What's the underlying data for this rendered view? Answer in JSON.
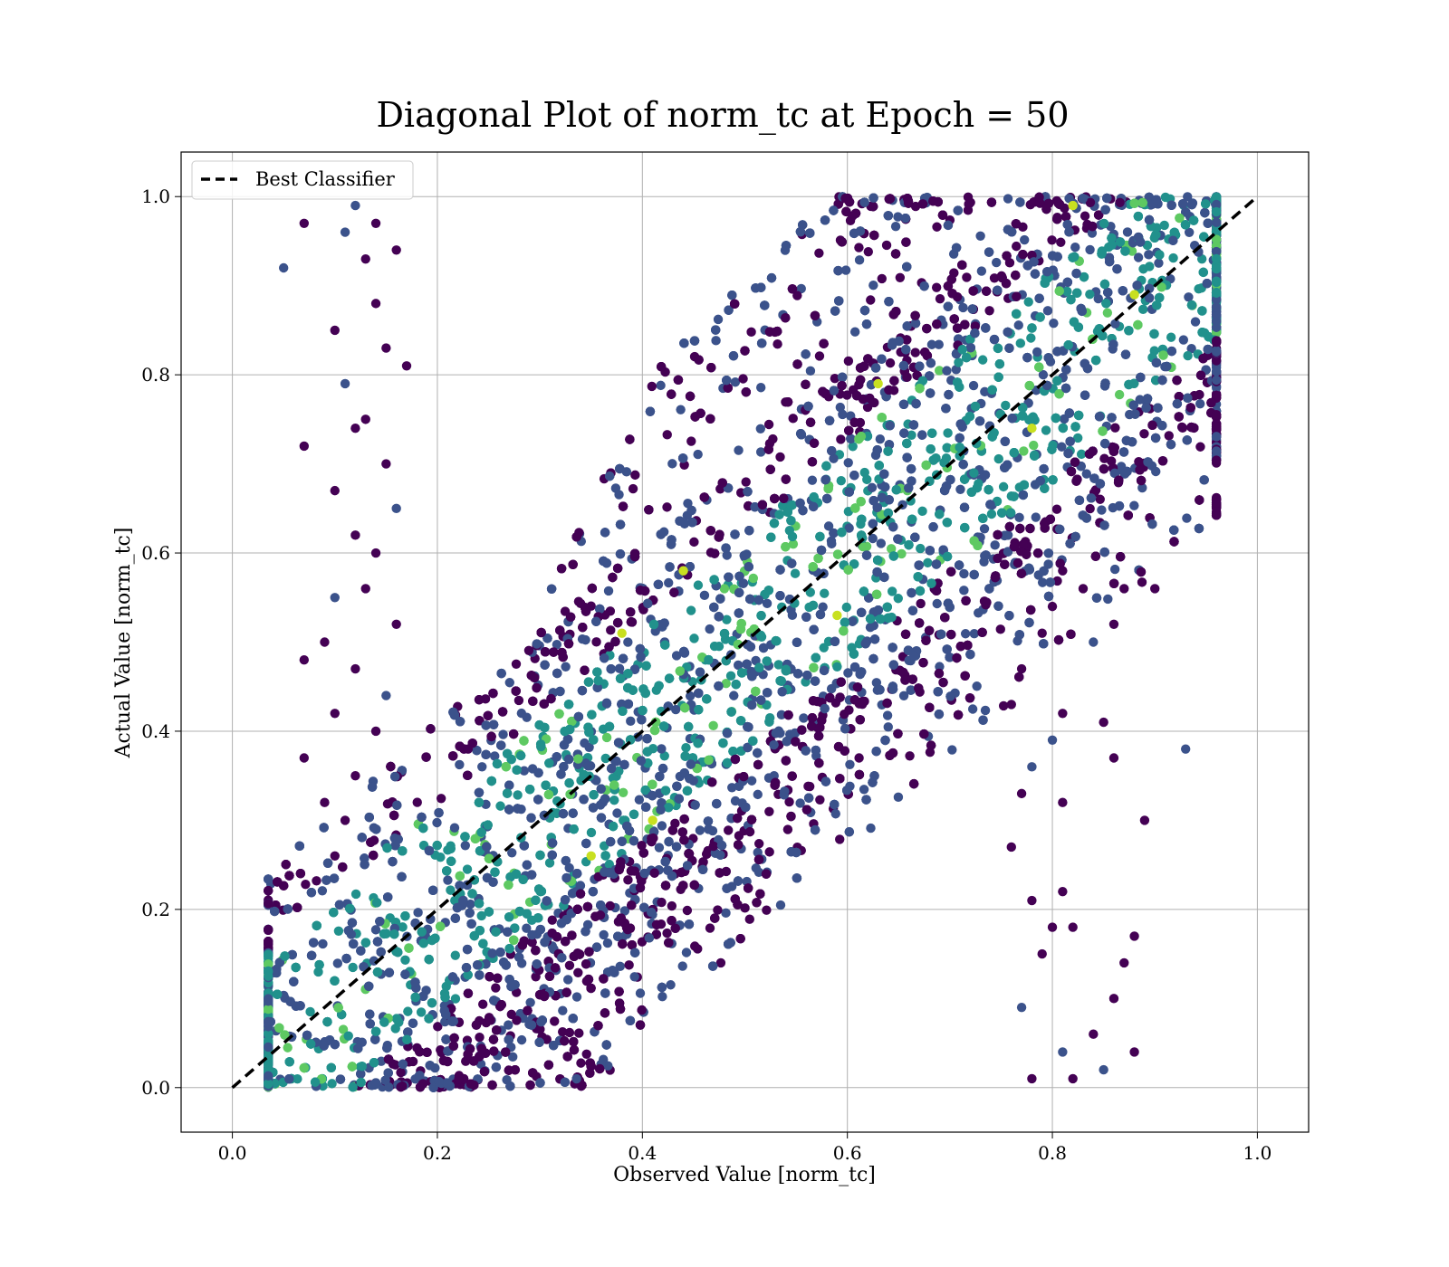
{
  "chart_data": {
    "type": "scatter",
    "title": "Diagonal Plot of norm_tc at Epoch = 50",
    "xlabel": "Observed Value [norm_tc]",
    "ylabel": "Actual Value [norm_tc]",
    "xlim": [
      -0.05,
      1.05
    ],
    "ylim": [
      -0.05,
      1.05
    ],
    "xticks": [
      "0.0",
      "0.2",
      "0.4",
      "0.6",
      "0.8",
      "1.0"
    ],
    "yticks": [
      "0.0",
      "0.2",
      "0.4",
      "0.6",
      "0.8",
      "1.0"
    ],
    "grid": true,
    "legend": {
      "placement": "upper-left",
      "entries": [
        "Best Classifier"
      ]
    },
    "colormap": "viridis",
    "point_color_range": [
      "#440154",
      "#3b528b",
      "#21918c",
      "#5ec962",
      "#c8e020"
    ],
    "reference_line": {
      "name": "Best Classifier",
      "style": "dashed",
      "color": "#000000",
      "x": [
        0.0,
        1.0
      ],
      "y": [
        0.0,
        1.0
      ]
    },
    "series": [
      {
        "name": "",
        "points": [
          [
            0.05,
            0.92
          ],
          [
            0.07,
            0.97
          ],
          [
            0.07,
            0.72
          ],
          [
            0.1,
            0.85
          ],
          [
            0.1,
            0.67
          ],
          [
            0.11,
            0.79
          ],
          [
            0.12,
            0.74
          ],
          [
            0.12,
            0.62
          ],
          [
            0.07,
            0.48
          ],
          [
            0.09,
            0.5
          ],
          [
            0.1,
            0.55
          ],
          [
            0.1,
            0.42
          ],
          [
            0.07,
            0.37
          ],
          [
            0.09,
            0.32
          ],
          [
            0.1,
            0.26
          ],
          [
            0.11,
            0.96
          ],
          [
            0.13,
            0.93
          ],
          [
            0.14,
            0.88
          ],
          [
            0.15,
            0.83
          ],
          [
            0.16,
            0.94
          ],
          [
            0.12,
            0.99
          ],
          [
            0.14,
            0.97
          ],
          [
            0.17,
            0.81
          ],
          [
            0.13,
            0.75
          ],
          [
            0.15,
            0.7
          ],
          [
            0.16,
            0.65
          ],
          [
            0.14,
            0.6
          ],
          [
            0.13,
            0.56
          ],
          [
            0.16,
            0.52
          ],
          [
            0.12,
            0.47
          ],
          [
            0.15,
            0.44
          ],
          [
            0.14,
            0.4
          ],
          [
            0.12,
            0.35
          ],
          [
            0.11,
            0.3
          ],
          [
            0.9,
            0.56
          ],
          [
            0.93,
            0.38
          ],
          [
            0.89,
            0.3
          ],
          [
            0.88,
            0.17
          ],
          [
            0.88,
            0.04
          ],
          [
            0.86,
            0.1
          ],
          [
            0.85,
            0.02
          ],
          [
            0.84,
            0.06
          ],
          [
            0.87,
            0.14
          ],
          [
            0.85,
            0.41
          ],
          [
            0.86,
            0.37
          ],
          [
            0.84,
            0.5
          ],
          [
            0.86,
            0.52
          ],
          [
            0.87,
            0.56
          ],
          [
            0.83,
            0.56
          ],
          [
            0.82,
            0.18
          ],
          [
            0.81,
            0.04
          ],
          [
            0.82,
            0.01
          ],
          [
            0.8,
            0.18
          ],
          [
            0.81,
            0.22
          ],
          [
            0.81,
            0.32
          ],
          [
            0.8,
            0.39
          ],
          [
            0.81,
            0.42
          ],
          [
            0.8,
            0.54
          ],
          [
            0.81,
            0.58
          ],
          [
            0.78,
            0.01
          ],
          [
            0.77,
            0.09
          ],
          [
            0.79,
            0.15
          ],
          [
            0.78,
            0.21
          ],
          [
            0.76,
            0.27
          ],
          [
            0.77,
            0.33
          ],
          [
            0.78,
            0.36
          ],
          [
            0.76,
            0.43
          ],
          [
            0.77,
            0.47
          ],
          [
            0.79,
            0.51
          ],
          [
            0.23,
            0.38
          ],
          [
            0.35,
            0.26
          ],
          [
            0.41,
            0.3
          ],
          [
            0.63,
            0.79
          ],
          [
            0.78,
            0.74
          ],
          [
            0.88,
            0.89
          ],
          [
            0.82,
            0.99
          ],
          [
            0.38,
            0.51
          ],
          [
            0.59,
            0.53
          ],
          [
            0.44,
            0.58
          ]
        ]
      }
    ]
  }
}
